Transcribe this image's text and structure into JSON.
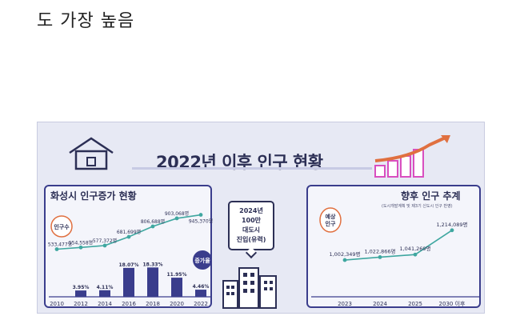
{
  "page_text": "도 가장 높음",
  "infographic": {
    "title": "2022년 이후 인구 현황",
    "center_sign": [
      "2024년",
      "100만",
      "대도시",
      "진입(유력)"
    ],
    "left_panel": {
      "title": "화성시 인구증가 현황",
      "badge_population": "인구수",
      "badge_growth": "증가율"
    },
    "right_panel": {
      "title": "향후 인구 추계",
      "note": "(도시개발계획 및 제3기 신도시 인구 반영)",
      "badge": "예상 인구"
    }
  },
  "colors": {
    "navy": "#3a3d8c",
    "teal": "#3fa7a0",
    "bg": "#e7e9f4",
    "gradient_bar": "#d94fc0"
  },
  "icons": [
    "house-icon",
    "bar-chart-deco-icon",
    "buildings-icon"
  ],
  "chart_data": [
    {
      "type": "bar+line",
      "title": "화성시 인구증가 현황",
      "categories": [
        "2010",
        "2012",
        "2014",
        "2016",
        "2018",
        "2020",
        "2022"
      ],
      "series": [
        {
          "name": "인구수",
          "type": "line",
          "values": [
            533477,
            554558,
            577372,
            681699,
            806688,
            903068,
            945370
          ],
          "labels": [
            "533,477명",
            "554,558명",
            "577,372명",
            "681,699명",
            "806,688명",
            "903,068명",
            "945,370명"
          ]
        },
        {
          "name": "증가율",
          "type": "bar",
          "values": [
            null,
            3.95,
            4.11,
            18.07,
            18.33,
            11.95,
            4.46
          ],
          "labels": [
            "",
            "3.95%",
            "4.11%",
            "18.07%",
            "18.33%",
            "11.95%",
            "4.46%"
          ]
        }
      ]
    },
    {
      "type": "line",
      "title": "향후 인구 추계",
      "categories": [
        "2023",
        "2024",
        "2025",
        "2030 이후"
      ],
      "series": [
        {
          "name": "예상 인구",
          "values": [
            1002349,
            1022866,
            1041269,
            1214089
          ],
          "labels": [
            "1,002,349명",
            "1,022,866명",
            "1,041,269명",
            "1,214,089명"
          ]
        }
      ]
    }
  ]
}
